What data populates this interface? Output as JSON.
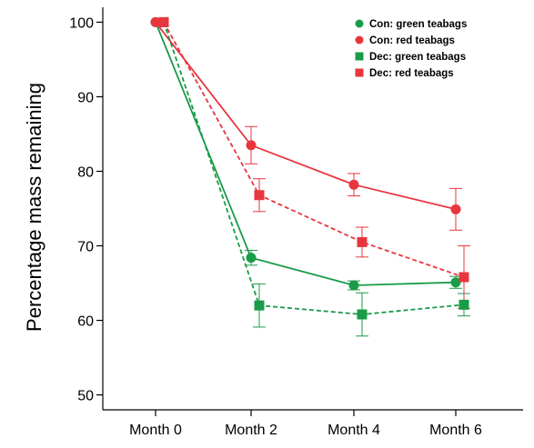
{
  "chart_data": {
    "type": "line",
    "title": "",
    "xlabel": "",
    "ylabel": "Percentage mass remaining",
    "categories": [
      "Month 0",
      "Month 2",
      "Month 4",
      "Month 6"
    ],
    "ylim": [
      48,
      102
    ],
    "yticks": [
      50,
      60,
      70,
      80,
      90,
      100
    ],
    "grid": false,
    "legend_position": "top-right",
    "series": [
      {
        "name": "Con: green teabags",
        "color": "#1a9b48",
        "marker": "circle",
        "line": "solid",
        "values": [
          100,
          68.4,
          64.7,
          65.1
        ],
        "error": [
          0,
          1.0,
          0.6,
          0.8
        ]
      },
      {
        "name": "Con: red teabags",
        "color": "#e8363f",
        "marker": "circle",
        "line": "solid",
        "values": [
          100,
          83.5,
          78.2,
          74.9
        ],
        "error": [
          0,
          2.5,
          1.5,
          2.8
        ]
      },
      {
        "name": "Dec: green teabags",
        "color": "#1a9b48",
        "marker": "square",
        "line": "dashed",
        "values": [
          100,
          62.0,
          60.8,
          62.1
        ],
        "error": [
          0,
          2.9,
          2.9,
          1.5
        ]
      },
      {
        "name": "Dec: red teabags",
        "color": "#e8363f",
        "marker": "square",
        "line": "dashed",
        "values": [
          100,
          76.8,
          70.5,
          65.8
        ],
        "error": [
          0,
          2.2,
          2.0,
          4.2
        ]
      }
    ]
  }
}
